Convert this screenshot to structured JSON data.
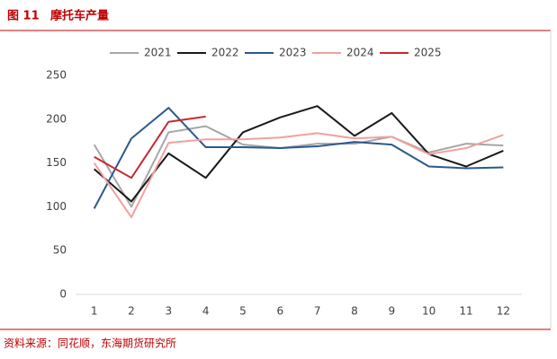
{
  "figure_label": "图 11",
  "chart_data": {
    "type": "line",
    "title": "摩托车产量",
    "categories": [
      "1",
      "2",
      "3",
      "4",
      "5",
      "6",
      "7",
      "8",
      "9",
      "10",
      "11",
      "12"
    ],
    "series": [
      {
        "name": "2021",
        "color": "#a6a6a6",
        "values": [
          171,
          100,
          185,
          192,
          171,
          167,
          172,
          172,
          180,
          162,
          172,
          170
        ]
      },
      {
        "name": "2022",
        "color": "#1a1a1a",
        "values": [
          143,
          106,
          161,
          133,
          185,
          202,
          215,
          181,
          207,
          160,
          146,
          164
        ]
      },
      {
        "name": "2023",
        "color": "#2a5a8c",
        "values": [
          98,
          178,
          213,
          168,
          168,
          167,
          169,
          174,
          171,
          146,
          144,
          145
        ]
      },
      {
        "name": "2024",
        "color": "#f2a0a0",
        "values": [
          150,
          88,
          173,
          177,
          177,
          179,
          184,
          178,
          180,
          160,
          167,
          182
        ]
      },
      {
        "name": "2025",
        "color": "#c62a30",
        "values": [
          157,
          133,
          197,
          203,
          null,
          null,
          null,
          null,
          null,
          null,
          null,
          null
        ]
      }
    ],
    "ylim": [
      0,
      250
    ],
    "yticks": [
      0,
      50,
      100,
      150,
      200,
      250
    ],
    "grid": false,
    "legend": "top"
  },
  "source": "资料来源：同花顺，东海期货研究所"
}
